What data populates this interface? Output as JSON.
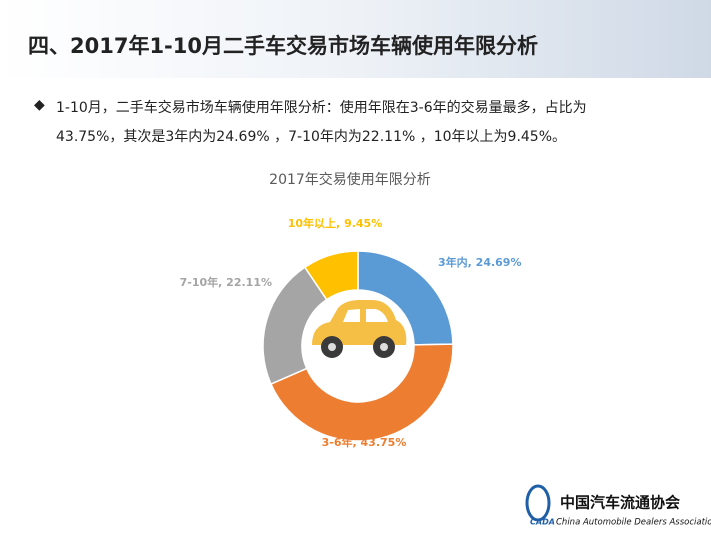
{
  "header": {
    "title": "四、2017年1-10月二手车交易市场车辆使用年限分析"
  },
  "bullet": {
    "lines": [
      "1-10月，二手车交易市场车辆使用年限分析：使用年限在3-6年的交易量最多，占比为",
      "43.75%，其次是3年内为24.69% ，7-10年内为22.11% ，10年以上为9.45%。"
    ]
  },
  "chart_data": {
    "type": "donut",
    "title": "2017年交易使用年限分析",
    "categories": [
      "3年内",
      "3-6年",
      "7-10年",
      "10年以上"
    ],
    "values": [
      24.69,
      43.75,
      22.11,
      9.45
    ],
    "value_labels": [
      "3年内, 24.69%",
      "3-6年, 43.75%",
      "7-10年, 22.11%",
      "10年以上, 9.45%"
    ],
    "colors": [
      "#5b9bd5",
      "#ed7d31",
      "#a5a5a5",
      "#ffc000"
    ]
  },
  "logo": {
    "abbr": "CADA",
    "name": "中国汽车流通协会",
    "english": "China Automobile Dealers Association"
  }
}
